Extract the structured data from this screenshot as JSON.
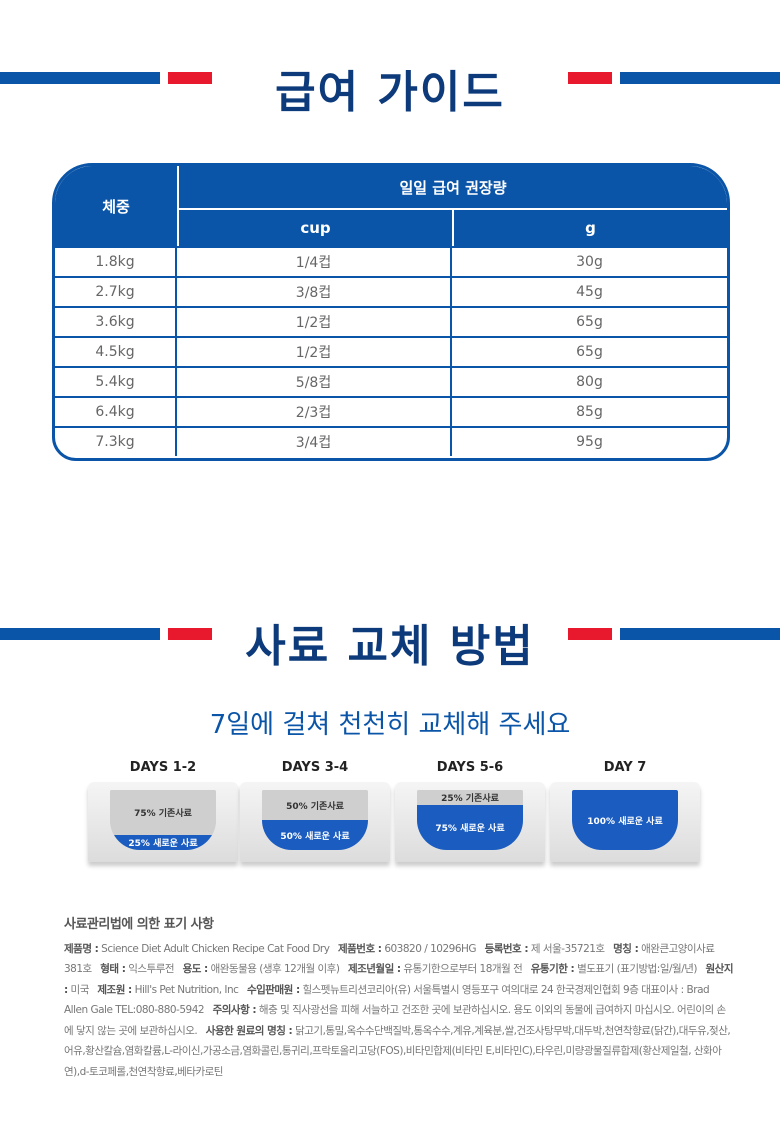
{
  "feeding_guide": {
    "title": "급여 가이드",
    "header": {
      "weight": "체중",
      "daily": "일일 급여 권장량",
      "cup": "cup",
      "g": "g"
    },
    "rows": [
      [
        "1.8kg",
        "1/4컵",
        "30g"
      ],
      [
        "2.7kg",
        "3/8컵",
        "45g"
      ],
      [
        "3.6kg",
        "1/2컵",
        "65g"
      ],
      [
        "4.5kg",
        "1/2컵",
        "65g"
      ],
      [
        "5.4kg",
        "5/8컵",
        "80g"
      ],
      [
        "6.4kg",
        "2/3컵",
        "85g"
      ],
      [
        "7.3kg",
        "3/4컵",
        "95g"
      ]
    ]
  },
  "transition": {
    "title": "사료 교체 방법",
    "subtitle": "7일에 걸쳐 천천히 교체해 주세요",
    "stages": [
      {
        "label": "DAYS 1-2",
        "old": "75% 기존사료",
        "new": "25% 새로운 사료",
        "new_pct": 25
      },
      {
        "label": "DAYS 3-4",
        "old": "50% 기존사료",
        "new": "50% 새로운 사료",
        "new_pct": 50
      },
      {
        "label": "DAYS 5-6",
        "old": "25% 기존사료",
        "new": "75% 새로운 사료",
        "new_pct": 75
      },
      {
        "label": "DAY 7",
        "old": "",
        "new": "100% 새로운 사료",
        "new_pct": 100
      }
    ]
  },
  "legal": {
    "title": "사료관리법에 의한 표기 사항",
    "items": [
      {
        "k": "제품명 :",
        "v": " Science Diet Adult Chicken Recipe Cat Food Dry"
      },
      {
        "k": "제품번호 :",
        "v": " 603820 / 10296HG"
      },
      {
        "k": "등록번호 :",
        "v": " 제 서울-35721호"
      },
      {
        "k": "명칭 :",
        "v": " 애완큰고양이사료 381호"
      },
      {
        "k": "형태 :",
        "v": " 익스투루전"
      },
      {
        "k": "용도 :",
        "v": " 애완동물용 (생후 12개월 이후)"
      },
      {
        "k": "제조년월일 :",
        "v": " 유통기한으로부터 18개월 전"
      },
      {
        "k": "유통기한 :",
        "v": " 별도표기 (표기방법:일/월/년)"
      },
      {
        "k": "원산지 :",
        "v": " 미국"
      },
      {
        "k": "제조원 :",
        "v": " Hill's Pet Nutrition, Inc"
      },
      {
        "k": "수입판매원 :",
        "v": " 힐스펫뉴트리션코리아(유) 서울특별시 영등포구 여의대로 24 한국경제인협회 9층 대표이사 : Brad Allen Gale TEL:080-880-5942"
      },
      {
        "k": "주의사항 :",
        "v": " 해충 및 직사광선을 피해 서늘하고 건조한 곳에 보관하십시오. 용도 이외의 동물에 급여하지 마십시오. 어린이의 손에 닿지 않는 곳에 보관하십시오."
      },
      {
        "k": "사용한 원료의 명칭 :",
        "v": " 닭고기,통밀,옥수수단백질박,통옥수수,계유,계육분,쌀,건조사탕무박,대두박,천연착향료(닭간),대두유,젖산,어유,황산칼슘,염화칼륨,L-라이신,가공소금,염화콜린,통귀리,프락토올리고당(FOS),비타민합제(비타민 E,비타민C),타우린,미량광물질류합제(황산제일철, 산화아연),d-토코페롤,천연착향료,베타카로틴"
      }
    ]
  },
  "colors": {
    "blue": "#0b55a8",
    "navy": "#0d3a7a",
    "red": "#e8192c"
  }
}
